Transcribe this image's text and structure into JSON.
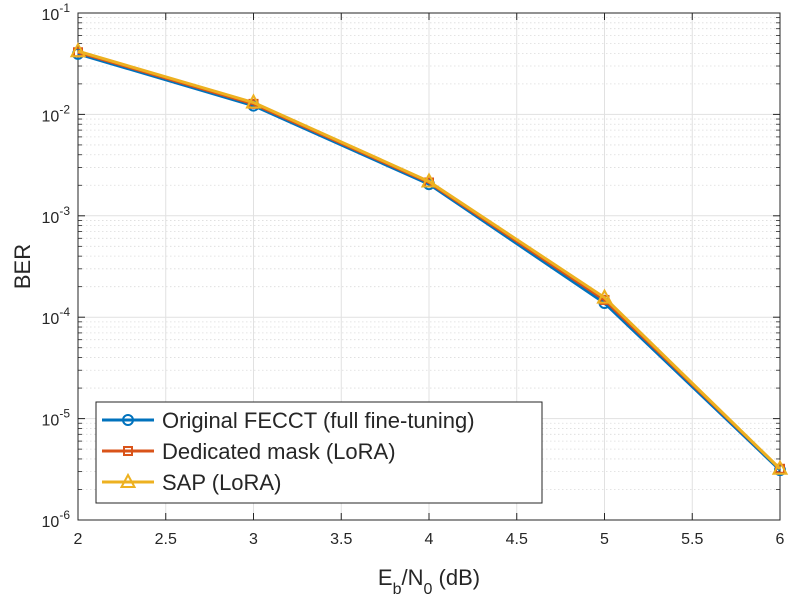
{
  "chart_data": {
    "type": "line",
    "title": "",
    "xlabel": "E_b/N_0 (dB)",
    "ylabel": "BER",
    "xlim": [
      2,
      6
    ],
    "ylim": [
      1e-06,
      0.1
    ],
    "yscale": "log",
    "grid": true,
    "minor_grid": true,
    "legend_position": "bottom-left",
    "x": [
      2,
      3,
      4,
      5,
      6
    ],
    "x_ticks": [
      "2",
      "2.5",
      "3",
      "3.5",
      "4",
      "4.5",
      "5",
      "5.5",
      "6"
    ],
    "y_ticks": [
      "10^-6",
      "10^-5",
      "10^-4",
      "10^-3",
      "10^-2",
      "10^-1"
    ],
    "series": [
      {
        "name": "Original FECCT (full fine-tuning)",
        "color": "#0072BD",
        "marker": "circle",
        "values": [
          0.0395,
          0.0122,
          0.00205,
          0.000138,
          3.1e-06
        ]
      },
      {
        "name": "Dedicated mask (LoRA)",
        "color": "#D95319",
        "marker": "square",
        "values": [
          0.041,
          0.0127,
          0.00213,
          0.000148,
          3.2e-06
        ]
      },
      {
        "name": "SAP (LoRA)",
        "color": "#EDB120",
        "marker": "triangle",
        "values": [
          0.042,
          0.0131,
          0.00218,
          0.000156,
          3.2e-06
        ]
      }
    ]
  }
}
